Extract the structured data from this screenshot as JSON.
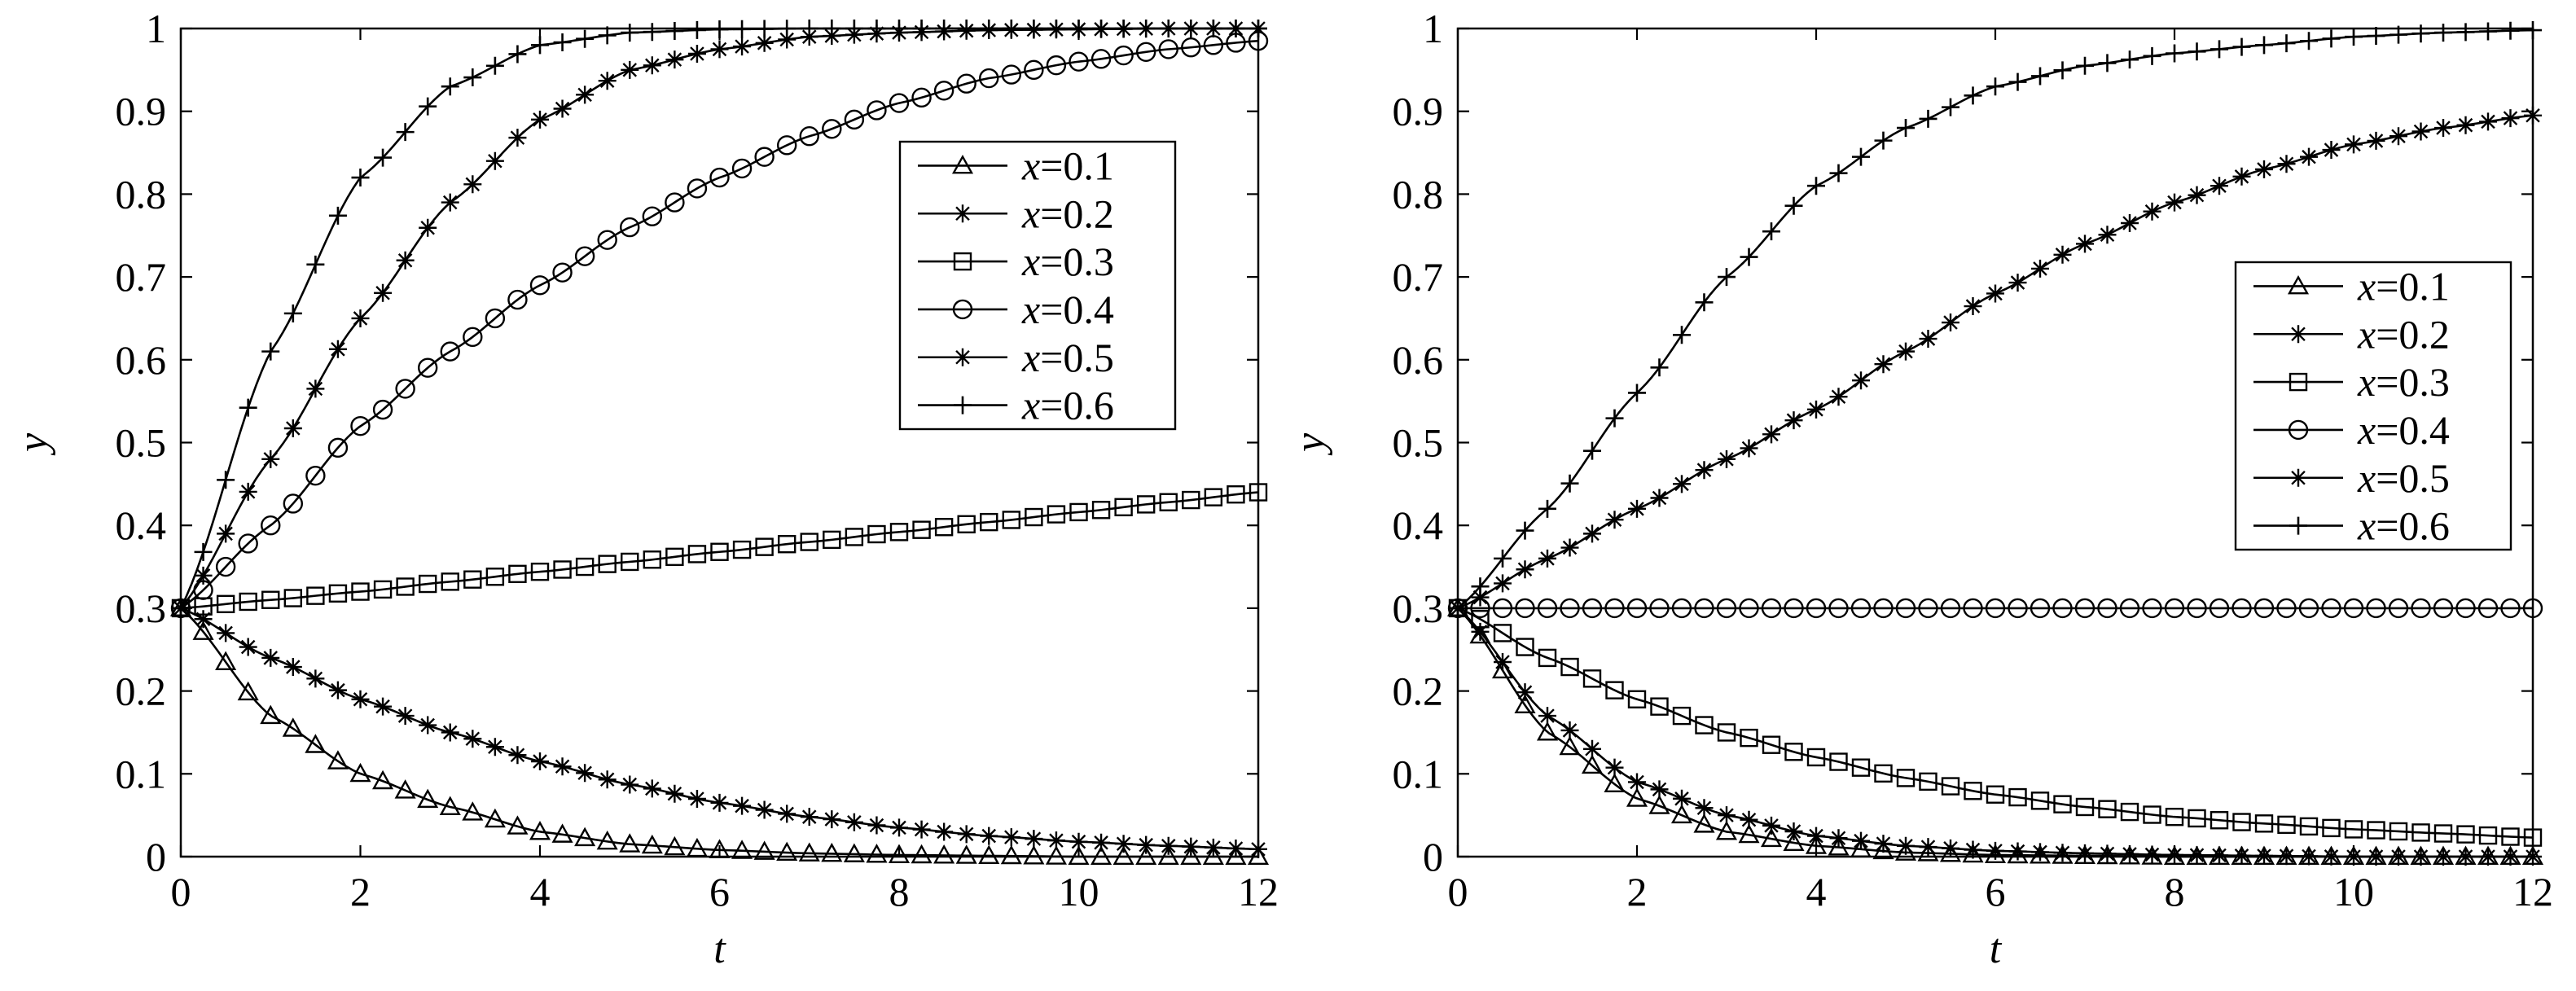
{
  "chart_data": [
    {
      "type": "line",
      "xlabel": "t",
      "ylabel": "y",
      "xlim": [
        0,
        12
      ],
      "ylim": [
        0,
        1
      ],
      "xticks": [
        "0",
        "2",
        "4",
        "6",
        "8",
        "10",
        "12"
      ],
      "yticks": [
        "0",
        "0.1",
        "0.2",
        "0.3",
        "0.4",
        "0.5",
        "0.6",
        "0.7",
        "0.8",
        "0.9",
        "1"
      ],
      "legend_position": "upper-right",
      "x": [
        0,
        1,
        2,
        3,
        4,
        5,
        6,
        7,
        8,
        9,
        10,
        11,
        12
      ],
      "series": [
        {
          "name": "x=0.1",
          "marker": "triangle",
          "values": [
            0.3,
            0.17,
            0.1,
            0.06,
            0.03,
            0.015,
            0.008,
            0.004,
            0.002,
            0.001,
            0.0,
            0.0,
            0.0
          ]
        },
        {
          "name": "x=0.2",
          "marker": "star",
          "values": [
            0.3,
            0.24,
            0.19,
            0.15,
            0.115,
            0.087,
            0.065,
            0.048,
            0.035,
            0.025,
            0.018,
            0.013,
            0.009
          ]
        },
        {
          "name": "x=0.3",
          "marker": "square",
          "values": [
            0.3,
            0.31,
            0.32,
            0.332,
            0.344,
            0.356,
            0.368,
            0.38,
            0.392,
            0.404,
            0.416,
            0.428,
            0.44
          ]
        },
        {
          "name": "x=0.4",
          "marker": "circle",
          "values": [
            0.3,
            0.4,
            0.52,
            0.61,
            0.69,
            0.76,
            0.82,
            0.87,
            0.91,
            0.94,
            0.96,
            0.975,
            0.985
          ]
        },
        {
          "name": "x=0.5",
          "marker": "star",
          "values": [
            0.3,
            0.48,
            0.65,
            0.79,
            0.89,
            0.95,
            0.975,
            0.99,
            0.995,
            0.998,
            0.999,
            1.0,
            1.0
          ]
        },
        {
          "name": "x=0.6",
          "marker": "plus",
          "values": [
            0.3,
            0.61,
            0.82,
            0.93,
            0.98,
            0.995,
            0.999,
            1.0,
            1.0,
            1.0,
            1.0,
            1.0,
            1.0
          ]
        }
      ]
    },
    {
      "type": "line",
      "xlabel": "t",
      "ylabel": "y",
      "xlim": [
        0,
        12
      ],
      "ylim": [
        0,
        1
      ],
      "xticks": [
        "0",
        "2",
        "4",
        "6",
        "8",
        "10",
        "12"
      ],
      "yticks": [
        "0",
        "0.1",
        "0.2",
        "0.3",
        "0.4",
        "0.5",
        "0.6",
        "0.7",
        "0.8",
        "0.9",
        "1"
      ],
      "legend_position": "upper-right",
      "x": [
        0,
        1,
        2,
        3,
        4,
        5,
        6,
        7,
        8,
        9,
        10,
        11,
        12
      ],
      "series": [
        {
          "name": "x=0.1",
          "marker": "triangle",
          "values": [
            0.3,
            0.15,
            0.07,
            0.03,
            0.013,
            0.005,
            0.002,
            0.001,
            0.0,
            0.0,
            0.0,
            0.0,
            0.0
          ]
        },
        {
          "name": "x=0.2",
          "marker": "star",
          "values": [
            0.3,
            0.17,
            0.09,
            0.05,
            0.025,
            0.013,
            0.007,
            0.004,
            0.002,
            0.001,
            0.0,
            0.0,
            0.0
          ]
        },
        {
          "name": "x=0.3",
          "marker": "square",
          "values": [
            0.3,
            0.24,
            0.19,
            0.15,
            0.12,
            0.095,
            0.075,
            0.06,
            0.048,
            0.04,
            0.033,
            0.028,
            0.023
          ]
        },
        {
          "name": "x=0.4",
          "marker": "circle",
          "values": [
            0.3,
            0.3,
            0.3,
            0.3,
            0.3,
            0.3,
            0.3,
            0.3,
            0.3,
            0.3,
            0.3,
            0.3,
            0.3
          ]
        },
        {
          "name": "x=0.5",
          "marker": "star",
          "values": [
            0.3,
            0.36,
            0.42,
            0.48,
            0.54,
            0.61,
            0.68,
            0.74,
            0.79,
            0.83,
            0.86,
            0.88,
            0.895
          ]
        },
        {
          "name": "x=0.6",
          "marker": "plus",
          "values": [
            0.3,
            0.42,
            0.56,
            0.7,
            0.81,
            0.88,
            0.93,
            0.955,
            0.97,
            0.98,
            0.99,
            0.995,
            0.998
          ]
        }
      ]
    }
  ]
}
